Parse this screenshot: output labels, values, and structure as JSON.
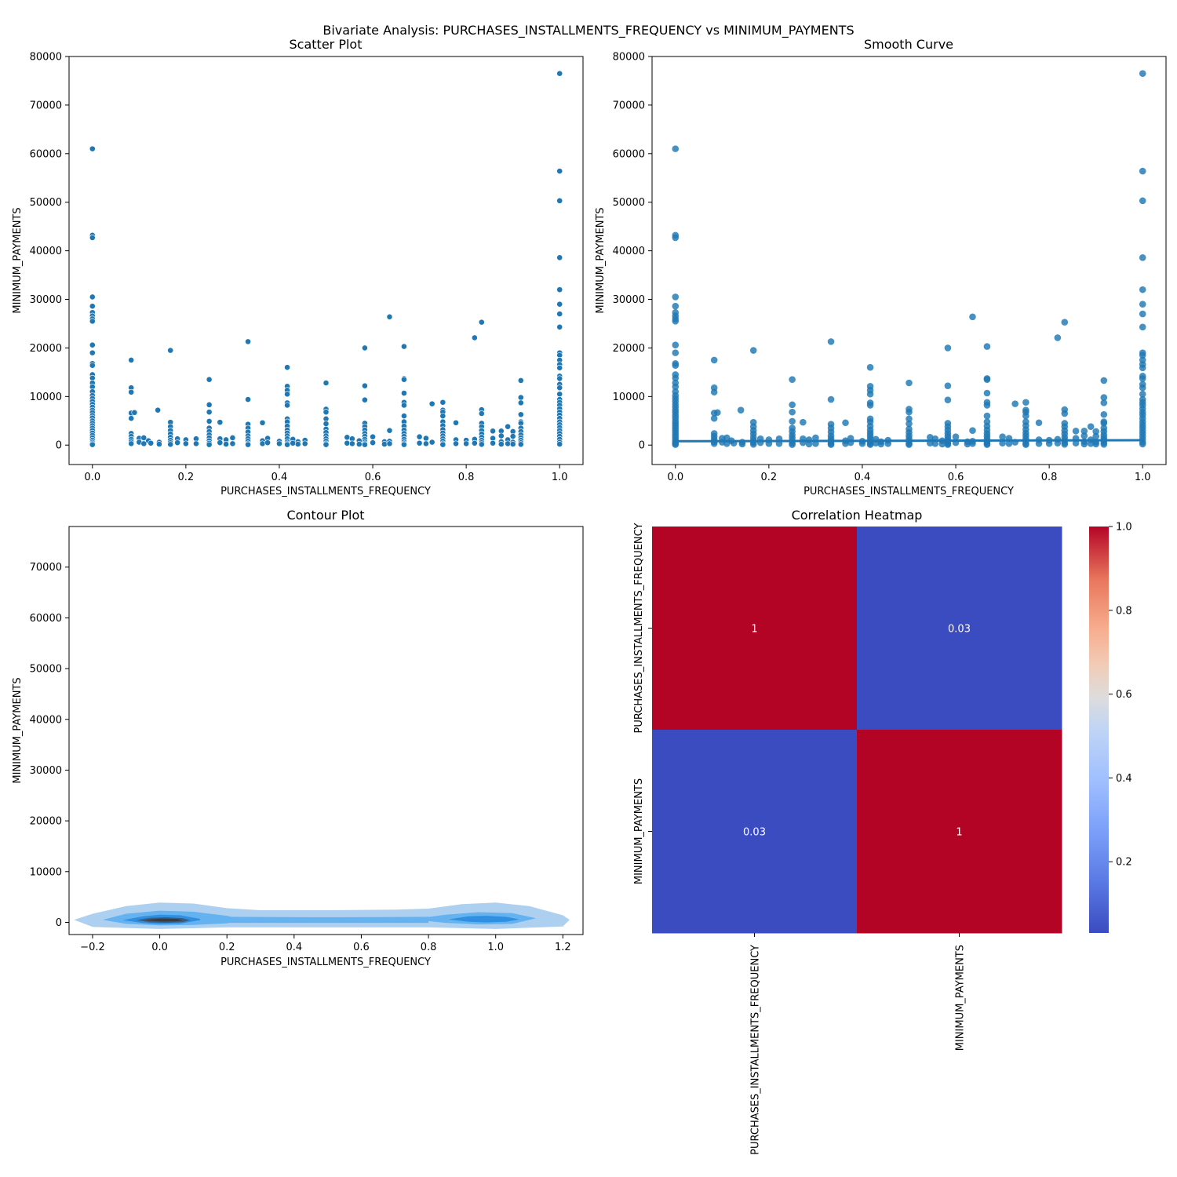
{
  "figure": {
    "suptitle": "Bivariate Analysis: PURCHASES_INSTALLMENTS_FREQUENCY vs MINIMUM_PAYMENTS"
  },
  "colors": {
    "point": "#1f77b4",
    "kde_light": "#aed0f0",
    "kde_mid": "#64b2ef",
    "kde_strong": "#2f8fe0",
    "kde_dark": "#3a5f87",
    "kde_core": "#3c3c3c",
    "heat_high": "#b40426",
    "heat_low": "#3b4cc0"
  },
  "chart_data": [
    {
      "type": "scatter",
      "title": "Scatter Plot",
      "xlabel": "PURCHASES_INSTALLMENTS_FREQUENCY",
      "ylabel": "MINIMUM_PAYMENTS",
      "xlim": [
        -0.05,
        1.05
      ],
      "ylim": [
        -4000,
        80000
      ],
      "xticks": [
        "0.0",
        "0.2",
        "0.4",
        "0.6",
        "0.8",
        "1.0"
      ],
      "xtick_values": [
        0,
        0.2,
        0.4,
        0.6,
        0.8,
        1.0
      ],
      "yticks": [
        "0",
        "10000",
        "20000",
        "30000",
        "40000",
        "50000",
        "60000",
        "70000",
        "80000"
      ],
      "ytick_values": [
        0,
        10000,
        20000,
        30000,
        40000,
        50000,
        60000,
        70000,
        80000
      ],
      "points": [
        [
          0,
          61000
        ],
        [
          0,
          43200
        ],
        [
          0,
          42700
        ],
        [
          0,
          30500
        ],
        [
          0,
          28600
        ],
        [
          0,
          27300
        ],
        [
          0,
          26600
        ],
        [
          0,
          26000
        ],
        [
          0,
          25500
        ],
        [
          0,
          20600
        ],
        [
          0,
          19000
        ],
        [
          0,
          16800
        ],
        [
          0,
          16400
        ],
        [
          0,
          14500
        ],
        [
          0,
          13800
        ],
        [
          0,
          12800
        ],
        [
          0,
          12000
        ],
        [
          0,
          11000
        ],
        [
          0,
          10200
        ],
        [
          0,
          9600
        ],
        [
          0,
          9000
        ],
        [
          0,
          8400
        ],
        [
          0,
          7800
        ],
        [
          0,
          7200
        ],
        [
          0,
          6700
        ],
        [
          0,
          6100
        ],
        [
          0,
          5600
        ],
        [
          0,
          5000
        ],
        [
          0,
          4500
        ],
        [
          0,
          4000
        ],
        [
          0,
          3500
        ],
        [
          0,
          3000
        ],
        [
          0,
          2500
        ],
        [
          0,
          2000
        ],
        [
          0,
          1500
        ],
        [
          0,
          1000
        ],
        [
          0,
          600
        ],
        [
          0,
          300
        ],
        [
          0,
          100
        ],
        [
          0.083,
          17500
        ],
        [
          0.083,
          11800
        ],
        [
          0.083,
          10900
        ],
        [
          0.083,
          6600
        ],
        [
          0.083,
          5500
        ],
        [
          0.083,
          2400
        ],
        [
          0.083,
          1800
        ],
        [
          0.083,
          1200
        ],
        [
          0.083,
          700
        ],
        [
          0.083,
          300
        ],
        [
          0.09,
          6700
        ],
        [
          0.1,
          1400
        ],
        [
          0.1,
          600
        ],
        [
          0.11,
          1500
        ],
        [
          0.11,
          300
        ],
        [
          0.12,
          900
        ],
        [
          0.125,
          400
        ],
        [
          0.14,
          7200
        ],
        [
          0.143,
          600
        ],
        [
          0.143,
          200
        ],
        [
          0.167,
          19500
        ],
        [
          0.167,
          4700
        ],
        [
          0.167,
          3800
        ],
        [
          0.167,
          3000
        ],
        [
          0.167,
          2300
        ],
        [
          0.167,
          1600
        ],
        [
          0.167,
          1000
        ],
        [
          0.167,
          500
        ],
        [
          0.167,
          150
        ],
        [
          0.182,
          1300
        ],
        [
          0.182,
          500
        ],
        [
          0.2,
          1100
        ],
        [
          0.2,
          300
        ],
        [
          0.222,
          1300
        ],
        [
          0.222,
          300
        ],
        [
          0.25,
          13500
        ],
        [
          0.25,
          8300
        ],
        [
          0.25,
          6800
        ],
        [
          0.25,
          4900
        ],
        [
          0.25,
          3500
        ],
        [
          0.25,
          2800
        ],
        [
          0.25,
          2100
        ],
        [
          0.25,
          1500
        ],
        [
          0.25,
          900
        ],
        [
          0.25,
          400
        ],
        [
          0.25,
          100
        ],
        [
          0.273,
          4700
        ],
        [
          0.273,
          1300
        ],
        [
          0.273,
          500
        ],
        [
          0.286,
          1100
        ],
        [
          0.286,
          200
        ],
        [
          0.3,
          1500
        ],
        [
          0.3,
          300
        ],
        [
          0.333,
          21300
        ],
        [
          0.333,
          9400
        ],
        [
          0.333,
          4300
        ],
        [
          0.333,
          3500
        ],
        [
          0.333,
          2700
        ],
        [
          0.333,
          1900
        ],
        [
          0.333,
          1300
        ],
        [
          0.333,
          800
        ],
        [
          0.333,
          300
        ],
        [
          0.333,
          100
        ],
        [
          0.364,
          4600
        ],
        [
          0.364,
          900
        ],
        [
          0.364,
          300
        ],
        [
          0.375,
          1400
        ],
        [
          0.375,
          500
        ],
        [
          0.4,
          800
        ],
        [
          0.4,
          300
        ],
        [
          0.417,
          16000
        ],
        [
          0.417,
          12100
        ],
        [
          0.417,
          11300
        ],
        [
          0.417,
          10500
        ],
        [
          0.417,
          8700
        ],
        [
          0.417,
          8200
        ],
        [
          0.417,
          5400
        ],
        [
          0.417,
          4800
        ],
        [
          0.417,
          3900
        ],
        [
          0.417,
          3100
        ],
        [
          0.417,
          2500
        ],
        [
          0.417,
          1900
        ],
        [
          0.417,
          1300
        ],
        [
          0.417,
          700
        ],
        [
          0.417,
          300
        ],
        [
          0.417,
          100
        ],
        [
          0.429,
          1200
        ],
        [
          0.429,
          400
        ],
        [
          0.44,
          700
        ],
        [
          0.44,
          200
        ],
        [
          0.455,
          1000
        ],
        [
          0.455,
          300
        ],
        [
          0.5,
          12800
        ],
        [
          0.5,
          7400
        ],
        [
          0.5,
          6800
        ],
        [
          0.5,
          5400
        ],
        [
          0.5,
          4400
        ],
        [
          0.5,
          3300
        ],
        [
          0.5,
          2600
        ],
        [
          0.5,
          1900
        ],
        [
          0.5,
          1300
        ],
        [
          0.5,
          800
        ],
        [
          0.5,
          300
        ],
        [
          0.5,
          100
        ],
        [
          0.545,
          1600
        ],
        [
          0.545,
          400
        ],
        [
          0.556,
          1300
        ],
        [
          0.556,
          300
        ],
        [
          0.571,
          900
        ],
        [
          0.571,
          200
        ],
        [
          0.583,
          20000
        ],
        [
          0.583,
          12200
        ],
        [
          0.583,
          9300
        ],
        [
          0.583,
          4500
        ],
        [
          0.583,
          3800
        ],
        [
          0.583,
          3100
        ],
        [
          0.583,
          2400
        ],
        [
          0.583,
          1800
        ],
        [
          0.583,
          1200
        ],
        [
          0.583,
          700
        ],
        [
          0.583,
          300
        ],
        [
          0.583,
          100
        ],
        [
          0.6,
          1700
        ],
        [
          0.6,
          500
        ],
        [
          0.625,
          700
        ],
        [
          0.625,
          200
        ],
        [
          0.636,
          26400
        ],
        [
          0.636,
          3000
        ],
        [
          0.636,
          800
        ],
        [
          0.636,
          300
        ],
        [
          0.667,
          20300
        ],
        [
          0.667,
          13700
        ],
        [
          0.667,
          13500
        ],
        [
          0.667,
          10700
        ],
        [
          0.667,
          8800
        ],
        [
          0.667,
          8200
        ],
        [
          0.667,
          6000
        ],
        [
          0.667,
          4800
        ],
        [
          0.667,
          3900
        ],
        [
          0.667,
          3100
        ],
        [
          0.667,
          2400
        ],
        [
          0.667,
          1800
        ],
        [
          0.667,
          1200
        ],
        [
          0.667,
          700
        ],
        [
          0.667,
          300
        ],
        [
          0.667,
          100
        ],
        [
          0.7,
          1700
        ],
        [
          0.7,
          400
        ],
        [
          0.714,
          1400
        ],
        [
          0.714,
          300
        ],
        [
          0.727,
          8500
        ],
        [
          0.727,
          600
        ],
        [
          0.75,
          8800
        ],
        [
          0.75,
          7200
        ],
        [
          0.75,
          6800
        ],
        [
          0.75,
          6000
        ],
        [
          0.75,
          4800
        ],
        [
          0.75,
          4000
        ],
        [
          0.75,
          3200
        ],
        [
          0.75,
          2500
        ],
        [
          0.75,
          1900
        ],
        [
          0.75,
          1300
        ],
        [
          0.75,
          800
        ],
        [
          0.75,
          300
        ],
        [
          0.75,
          100
        ],
        [
          0.778,
          4600
        ],
        [
          0.778,
          1100
        ],
        [
          0.778,
          300
        ],
        [
          0.8,
          1000
        ],
        [
          0.8,
          300
        ],
        [
          0.818,
          22100
        ],
        [
          0.818,
          1200
        ],
        [
          0.818,
          400
        ],
        [
          0.833,
          25300
        ],
        [
          0.833,
          7300
        ],
        [
          0.833,
          6500
        ],
        [
          0.833,
          4500
        ],
        [
          0.833,
          3800
        ],
        [
          0.833,
          3000
        ],
        [
          0.833,
          2300
        ],
        [
          0.833,
          1600
        ],
        [
          0.833,
          1000
        ],
        [
          0.833,
          500
        ],
        [
          0.833,
          150
        ],
        [
          0.857,
          2900
        ],
        [
          0.857,
          1400
        ],
        [
          0.857,
          400
        ],
        [
          0.875,
          2900
        ],
        [
          0.875,
          1900
        ],
        [
          0.875,
          700
        ],
        [
          0.875,
          200
        ],
        [
          0.889,
          3800
        ],
        [
          0.889,
          1100
        ],
        [
          0.889,
          300
        ],
        [
          0.9,
          2800
        ],
        [
          0.9,
          1800
        ],
        [
          0.9,
          600
        ],
        [
          0.9,
          200
        ],
        [
          0.917,
          13300
        ],
        [
          0.917,
          9800
        ],
        [
          0.917,
          8700
        ],
        [
          0.917,
          6300
        ],
        [
          0.917,
          4800
        ],
        [
          0.917,
          4500
        ],
        [
          0.917,
          3500
        ],
        [
          0.917,
          2800
        ],
        [
          0.917,
          2100
        ],
        [
          0.917,
          1500
        ],
        [
          0.917,
          1000
        ],
        [
          0.917,
          500
        ],
        [
          0.917,
          150
        ],
        [
          1,
          76500
        ],
        [
          1,
          56400
        ],
        [
          1,
          50300
        ],
        [
          1,
          38600
        ],
        [
          1,
          32000
        ],
        [
          1,
          29000
        ],
        [
          1,
          27000
        ],
        [
          1,
          24300
        ],
        [
          1,
          19000
        ],
        [
          1,
          18500
        ],
        [
          1,
          17500
        ],
        [
          1,
          16600
        ],
        [
          1,
          15900
        ],
        [
          1,
          14200
        ],
        [
          1,
          13700
        ],
        [
          1,
          12500
        ],
        [
          1,
          11800
        ],
        [
          1,
          10500
        ],
        [
          1,
          9400
        ],
        [
          1,
          8800
        ],
        [
          1,
          8200
        ],
        [
          1,
          7500
        ],
        [
          1,
          6800
        ],
        [
          1,
          6200
        ],
        [
          1,
          5500
        ],
        [
          1,
          4800
        ],
        [
          1,
          4200
        ],
        [
          1,
          3600
        ],
        [
          1,
          3000
        ],
        [
          1,
          2400
        ],
        [
          1,
          1800
        ],
        [
          1,
          1200
        ],
        [
          1,
          600
        ],
        [
          1,
          200
        ]
      ]
    },
    {
      "type": "scatter",
      "title": "Smooth Curve",
      "xlabel": "PURCHASES_INSTALLMENTS_FREQUENCY",
      "ylabel": "MINIMUM_PAYMENTS",
      "xlim": [
        -0.05,
        1.05
      ],
      "ylim": [
        -4000,
        80000
      ],
      "xticks": [
        "0.0",
        "0.2",
        "0.4",
        "0.6",
        "0.8",
        "1.0"
      ],
      "xtick_values": [
        0,
        0.2,
        0.4,
        0.6,
        0.8,
        1.0
      ],
      "yticks": [
        "0",
        "10000",
        "20000",
        "30000",
        "40000",
        "50000",
        "60000",
        "70000",
        "80000"
      ],
      "ytick_values": [
        0,
        10000,
        20000,
        30000,
        40000,
        50000,
        60000,
        70000,
        80000
      ],
      "points_ref": "same as Scatter Plot",
      "trend_line": [
        [
          0,
          800
        ],
        [
          1,
          1000
        ]
      ]
    },
    {
      "type": "contour",
      "title": "Contour Plot",
      "xlabel": "PURCHASES_INSTALLMENTS_FREQUENCY",
      "ylabel": "MINIMUM_PAYMENTS",
      "xlim": [
        -0.27,
        1.26
      ],
      "ylim": [
        -2400,
        78000
      ],
      "xticks": [
        "−0.2",
        "0.0",
        "0.2",
        "0.4",
        "0.6",
        "0.8",
        "1.0",
        "1.2"
      ],
      "xtick_values": [
        -0.2,
        0,
        0.2,
        0.4,
        0.6,
        0.8,
        1.0,
        1.2
      ],
      "yticks": [
        "0",
        "10000",
        "20000",
        "30000",
        "40000",
        "50000",
        "60000",
        "70000"
      ],
      "ytick_values": [
        0,
        10000,
        20000,
        30000,
        40000,
        50000,
        60000,
        70000
      ],
      "density_modes": [
        {
          "x": 0.0,
          "y": 400,
          "level": "high"
        },
        {
          "x": 0.95,
          "y": 600,
          "level": "medium"
        }
      ]
    },
    {
      "type": "heatmap",
      "title": "Correlation Heatmap",
      "labels": [
        "PURCHASES_INSTALLMENTS_FREQUENCY",
        "MINIMUM_PAYMENTS"
      ],
      "values": [
        [
          1,
          0.03
        ],
        [
          0.03,
          1
        ]
      ],
      "annotations": [
        [
          "1",
          "0.03"
        ],
        [
          "0.03",
          "1"
        ]
      ],
      "colorbar": {
        "min": 0.03,
        "max": 1.0,
        "ticks": [
          "0.2",
          "0.4",
          "0.6",
          "0.8",
          "1.0"
        ],
        "tick_values": [
          0.2,
          0.4,
          0.6,
          0.8,
          1.0
        ]
      }
    }
  ]
}
